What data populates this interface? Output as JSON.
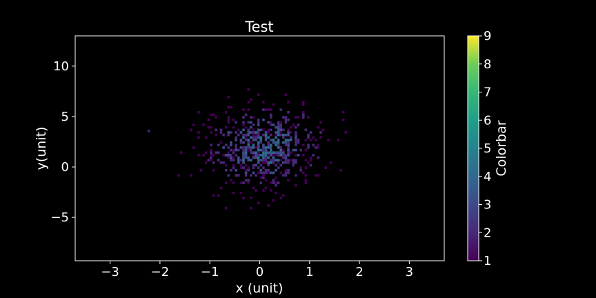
{
  "chart_data": {
    "type": "heatmap",
    "subtype": "2d-histogram",
    "title": "Test",
    "xlabel": "x (unit)",
    "ylabel": "y(unit)",
    "xlim": [
      -3.7,
      3.7
    ],
    "ylim": [
      -9.3,
      13.0
    ],
    "xticks": [
      -3,
      -2,
      -1,
      0,
      1,
      2,
      3
    ],
    "xtick_labels": [
      "−3",
      "−2",
      "−1",
      "0",
      "1",
      "2",
      "3"
    ],
    "yticks": [
      -5,
      0,
      5,
      10
    ],
    "ytick_labels": [
      "−5",
      "0",
      "5",
      "10"
    ],
    "grid": false,
    "colormap": "viridis",
    "colorbar": {
      "label": "Colorbar",
      "range": [
        1,
        9
      ],
      "ticks": [
        1,
        2,
        3,
        4,
        5,
        6,
        7,
        8,
        9
      ],
      "tick_labels": [
        "1",
        "2",
        "3",
        "4",
        "5",
        "6",
        "7",
        "8",
        "9"
      ]
    },
    "distribution": {
      "kind": "bivariate-normal",
      "x_mean": 0.05,
      "x_std": 0.62,
      "y_mean": 1.8,
      "y_std": 2.1,
      "x_range": [
        -1.7,
        1.8
      ],
      "y_range": [
        -4.2,
        8.2
      ],
      "bin_width_x": 0.05,
      "bin_height_y": 0.25,
      "peak_count": 4,
      "min_count": 1
    },
    "colors": {
      "background": "#000000",
      "axes": "#ffffff",
      "text": "#ffffff"
    }
  }
}
